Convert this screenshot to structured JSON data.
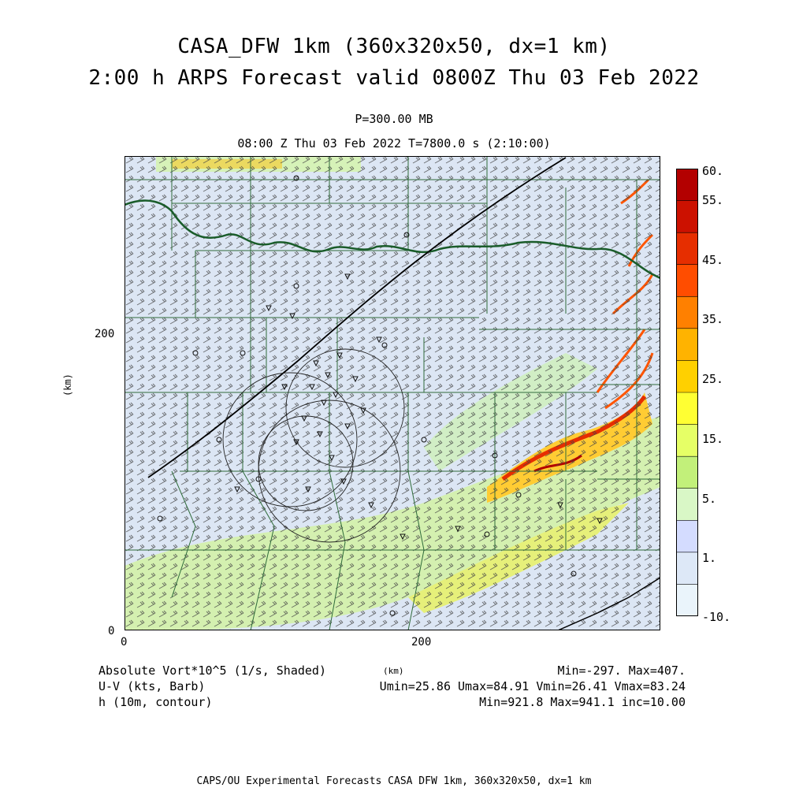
{
  "header": {
    "title_line1": "CASA_DFW 1km (360x320x50, dx=1 km)",
    "title_line2": "2:00 h ARPS Forecast valid 0800Z Thu 03 Feb 2022",
    "pressure": "P=300.00 MB",
    "time_line": "08:00 Z Thu 03 Feb 2022   T=7800.0 s (2:10:00)"
  },
  "axes": {
    "x_ticks": [
      "0",
      "200"
    ],
    "y_ticks": [
      "0",
      "200"
    ],
    "y_label": "(km)",
    "x_label": "(km)"
  },
  "colorbar": {
    "labels": [
      "60.",
      "55.",
      "45.",
      "35.",
      "25.",
      "15.",
      "5.",
      "1.",
      "-10."
    ],
    "colors": [
      "#b30000",
      "#cc1100",
      "#e62e00",
      "#ff4d00",
      "#ff8000",
      "#ffb300",
      "#ffd000",
      "#ffff33",
      "#e6ff66",
      "#c2f07a",
      "#d9f7c6",
      "#d4dcff",
      "#dde8f7",
      "#eaf4fb"
    ]
  },
  "footer": {
    "left1": "Absolute Vort*10^5 (1/s, Shaded)",
    "left2": "U-V (kts, Barb)",
    "left3": "h (10m, contour)",
    "mid_km": "(km)",
    "right1": "Min=-297. Max=407.",
    "right2": "Umin=25.86 Umax=84.91 Vmin=26.41 Vmax=83.24",
    "right3": "Min=921.8 Max=941.1 inc=10.00",
    "credit": "CAPS/OU Experimental Forecasts  CASA DFW 1km, 360x320x50, dx=1 km"
  },
  "colors": {
    "background_field": "#dde8f7",
    "county_lines": "#2f6b3a",
    "state_border": "#1a5c2a",
    "barbs": "#333333"
  }
}
